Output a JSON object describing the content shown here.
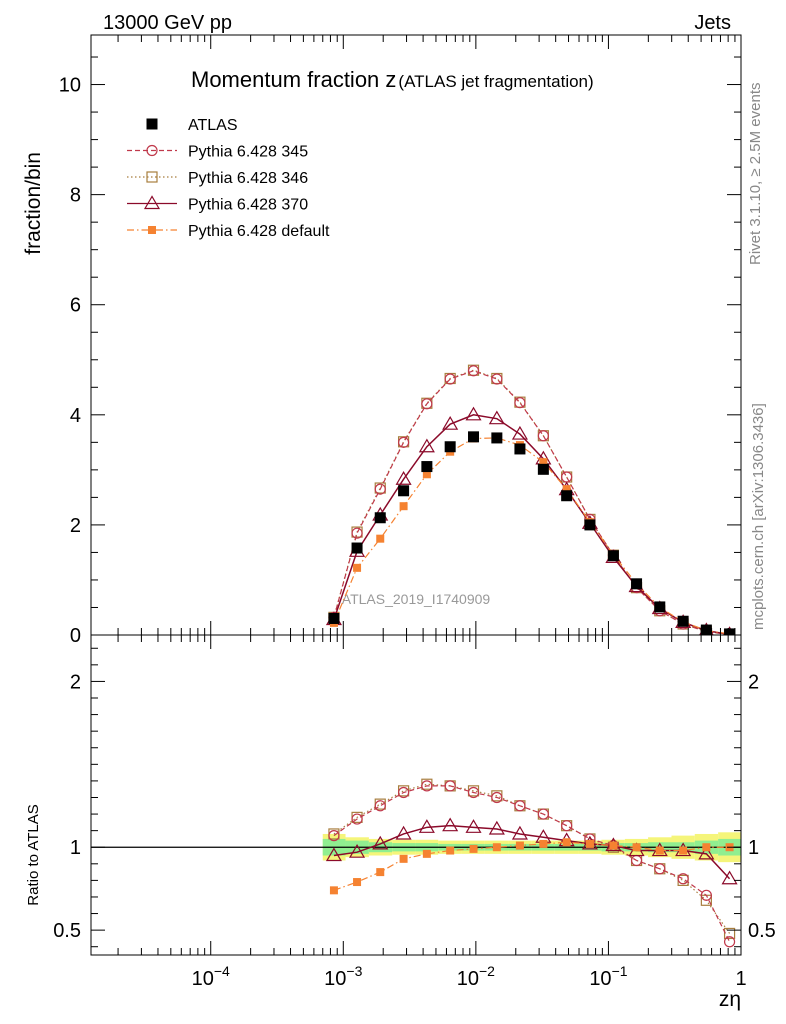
{
  "header": {
    "left": "13000 GeV pp",
    "right": "Jets"
  },
  "side_labels": {
    "rivet": "Rivet 3.1.10, ≥ 2.5M events",
    "mcplots": "mcplots.cern.ch [arXiv:1306.3436]"
  },
  "watermark": "ATLAS_2019_I1740909",
  "colors": {
    "atlas": "#000000",
    "p345": "#c0394b",
    "p346": "#a87e3e",
    "p370": "#8b0a2a",
    "pdefault": "#f58231",
    "band_inner": "#90ee90",
    "band_outer": "#f5f57a"
  },
  "chart_data": [
    {
      "type": "scatter",
      "panel": "main",
      "title_main": "Momentum fraction z",
      "title_sub": "(ATLAS jet fragmentation)",
      "xlabel": "zη",
      "ylabel": "fraction/bin",
      "xscale": "log",
      "xlim": [
        1.25e-05,
        1.0
      ],
      "ylim": [
        0,
        10.9
      ],
      "yticks": [
        0,
        2,
        4,
        6,
        8,
        10
      ],
      "ytick_labels": [
        "0",
        "2",
        "4",
        "6",
        "8",
        "10"
      ],
      "x": [
        0.00085,
        0.00127,
        0.0019,
        0.00285,
        0.00427,
        0.0064,
        0.0096,
        0.0144,
        0.0215,
        0.0323,
        0.0484,
        0.0725,
        0.109,
        0.163,
        0.244,
        0.366,
        0.548,
        0.82
      ],
      "series": [
        {
          "name": "ATLAS",
          "key": "atlas",
          "marker": "filled-square",
          "line": "none",
          "values": [
            0.3,
            1.58,
            2.13,
            2.62,
            3.06,
            3.42,
            3.6,
            3.58,
            3.38,
            3.01,
            2.53,
            2.0,
            1.44,
            0.93,
            0.51,
            0.25,
            0.09,
            0.02
          ]
        },
        {
          "name": "Pythia 6.428 345",
          "key": "p345",
          "marker": "open-circle",
          "line": "dashed",
          "values": [
            0.32,
            1.85,
            2.65,
            3.5,
            4.2,
            4.65,
            4.8,
            4.65,
            4.22,
            3.62,
            2.87,
            2.1,
            1.45,
            0.86,
            0.44,
            0.2,
            0.06,
            0.01
          ]
        },
        {
          "name": "Pythia 6.428 346",
          "key": "p346",
          "marker": "open-square",
          "line": "dotted",
          "values": [
            0.32,
            1.87,
            2.67,
            3.51,
            4.21,
            4.66,
            4.81,
            4.66,
            4.23,
            3.62,
            2.87,
            2.1,
            1.45,
            0.86,
            0.44,
            0.2,
            0.06,
            0.01
          ]
        },
        {
          "name": "Pythia 6.428 370",
          "key": "p370",
          "marker": "open-triangle",
          "line": "solid",
          "values": [
            0.28,
            1.52,
            2.18,
            2.83,
            3.42,
            3.83,
            4.0,
            3.93,
            3.65,
            3.2,
            2.64,
            2.03,
            1.41,
            0.88,
            0.48,
            0.23,
            0.08,
            0.01
          ]
        },
        {
          "name": "Pythia 6.428 default",
          "key": "pdefault",
          "marker": "small-filled-square",
          "line": "dashdot",
          "values": [
            0.22,
            1.22,
            1.75,
            2.34,
            2.92,
            3.33,
            3.57,
            3.58,
            3.45,
            3.14,
            2.65,
            2.05,
            1.46,
            0.93,
            0.5,
            0.24,
            0.08,
            0.02
          ]
        }
      ]
    },
    {
      "type": "scatter",
      "panel": "ratio",
      "ylabel": "Ratio to ATLAS",
      "xlabel": "zη",
      "xscale": "log",
      "xlim": [
        1.25e-05,
        1.0
      ],
      "ylim": [
        0.35,
        2.28
      ],
      "yticks": [
        0.5,
        1,
        2
      ],
      "ytick_labels": [
        "0.5",
        "1",
        "2"
      ],
      "xticks": [
        0.0001,
        0.001,
        0.01,
        0.1,
        1
      ],
      "xtick_labels": [
        {
          "base": "10",
          "exp": "−4"
        },
        {
          "base": "10",
          "exp": "−3"
        },
        {
          "base": "10",
          "exp": "−2"
        },
        {
          "base": "10",
          "exp": "−1"
        },
        {
          "base": "1",
          "exp": ""
        }
      ],
      "x": [
        0.00085,
        0.00127,
        0.0019,
        0.00285,
        0.00427,
        0.0064,
        0.0096,
        0.0144,
        0.0215,
        0.0323,
        0.0484,
        0.0725,
        0.109,
        0.163,
        0.244,
        0.366,
        0.548,
        0.82
      ],
      "band_edges": [
        0.0007,
        0.00104,
        0.00156,
        0.00234,
        0.0035,
        0.0052,
        0.0078,
        0.0117,
        0.0175,
        0.0262,
        0.0393,
        0.059,
        0.0885,
        0.133,
        0.199,
        0.299,
        0.448,
        0.672,
        1.0
      ],
      "band_inner": [
        0.05,
        0.04,
        0.03,
        0.025,
        0.025,
        0.02,
        0.02,
        0.02,
        0.02,
        0.02,
        0.02,
        0.02,
        0.025,
        0.025,
        0.03,
        0.03,
        0.04,
        0.05
      ],
      "band_outer": [
        0.08,
        0.06,
        0.05,
        0.045,
        0.045,
        0.04,
        0.04,
        0.04,
        0.04,
        0.04,
        0.04,
        0.04,
        0.045,
        0.05,
        0.06,
        0.07,
        0.08,
        0.09
      ],
      "series": [
        {
          "name": "Pythia 6.428 345",
          "key": "p345",
          "marker": "open-circle",
          "line": "dashed",
          "values": [
            1.07,
            1.17,
            1.25,
            1.33,
            1.37,
            1.37,
            1.33,
            1.3,
            1.25,
            1.2,
            1.13,
            1.05,
            1.01,
            0.92,
            0.87,
            0.81,
            0.71,
            0.43
          ]
        },
        {
          "name": "Pythia 6.428 346",
          "key": "p346",
          "marker": "open-square",
          "line": "dotted",
          "values": [
            1.08,
            1.18,
            1.26,
            1.34,
            1.38,
            1.37,
            1.34,
            1.31,
            1.25,
            1.2,
            1.13,
            1.05,
            1.0,
            0.92,
            0.87,
            0.8,
            0.68,
            0.48
          ]
        },
        {
          "name": "Pythia 6.428 370",
          "key": "p370",
          "marker": "open-triangle",
          "line": "solid",
          "values": [
            0.95,
            0.97,
            1.02,
            1.08,
            1.12,
            1.13,
            1.12,
            1.11,
            1.08,
            1.06,
            1.04,
            1.02,
            1.01,
            0.98,
            0.98,
            0.98,
            0.96,
            0.81
          ]
        },
        {
          "name": "Pythia 6.428 default",
          "key": "pdefault",
          "marker": "small-filled-square",
          "line": "dashdot",
          "values": [
            0.74,
            0.79,
            0.85,
            0.93,
            0.96,
            0.98,
            0.99,
            1.0,
            1.01,
            1.02,
            1.03,
            1.02,
            1.01,
            1.0,
            0.98,
            0.98,
            1.0,
            1.0
          ]
        }
      ]
    }
  ]
}
